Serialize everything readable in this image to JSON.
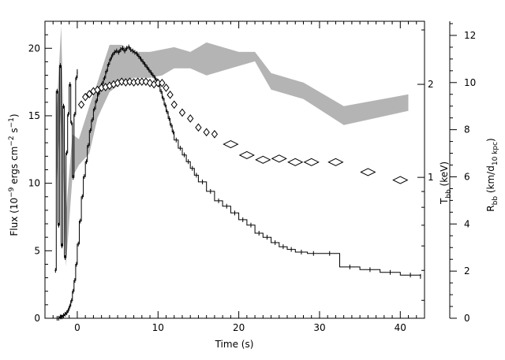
{
  "chart_data": {
    "type": "line",
    "xlabel": "Time (s)",
    "xlim": [
      -4,
      43
    ],
    "x_ticks": [
      0,
      10,
      20,
      30,
      40
    ],
    "left_axis": {
      "label": "Flux (10⁻⁹ ergs cm⁻² s⁻¹)",
      "label_parts": {
        "main": "Flux (10",
        "exp1": "−9",
        "mid1": " ergs cm",
        "exp2": "−2",
        "mid2": " s",
        "exp3": "−1",
        "end": ")"
      },
      "range": [
        0,
        22
      ],
      "ticks": [
        0,
        5,
        10,
        15,
        20
      ]
    },
    "tbb_axis": {
      "label": "T_bb (keV)",
      "label_parts": {
        "main": "T",
        "sub": "bb",
        "end": " (keV)"
      },
      "scale": "log",
      "range": [
        0.35,
        3.2
      ],
      "ticks": [
        1,
        2
      ]
    },
    "rbb_axis": {
      "label": "R_bb (km/d_10 kpc)",
      "label_parts": {
        "main": "R",
        "sub": "bb",
        "mid": " (km/d",
        "sub2": "10 kpc",
        "end": ")"
      },
      "range": [
        0,
        12.6
      ],
      "ticks": [
        0,
        2,
        4,
        6,
        8,
        10,
        12
      ]
    },
    "series": [
      {
        "style": "step",
        "values_axis": "left",
        "color": "#000000",
        "x": [
          -2.6,
          -2.4,
          -2.2,
          -2.0,
          -1.8,
          -1.6,
          -1.4,
          -1.2,
          -1.0,
          -0.8,
          -0.6,
          -0.4,
          -0.2,
          0.0,
          0.25,
          0.5,
          0.75,
          1.0,
          1.25,
          1.5,
          1.75,
          2.0,
          2.25,
          2.5,
          2.75,
          3.0,
          3.25,
          3.5,
          3.75,
          4.0,
          4.25,
          4.5,
          4.75,
          5.0,
          5.25,
          5.5,
          5.75,
          6.0,
          6.25,
          6.5,
          6.75,
          7.0,
          7.25,
          7.5,
          7.75,
          8.0,
          8.25,
          8.5,
          8.75,
          9.0,
          9.25,
          9.5,
          9.75,
          10.0,
          10.25,
          10.5,
          10.75,
          11.0,
          11.25,
          11.5,
          11.75,
          12.0,
          12.5,
          13.0,
          13.5,
          14.0,
          14.5,
          15.0,
          16.0,
          17.0,
          18.0,
          19.0,
          20.0,
          21.0,
          22.0,
          23.0,
          24.0,
          25.0,
          26.0,
          27.0,
          28.5,
          30.0,
          32.5,
          35.0,
          37.5,
          40.0,
          42.5
        ],
        "values": [
          0.0,
          0.0,
          0.1,
          0.1,
          0.2,
          0.3,
          0.4,
          0.6,
          0.9,
          1.3,
          2.0,
          2.8,
          4.0,
          5.5,
          7.2,
          9.0,
          10.5,
          11.6,
          12.8,
          13.9,
          14.7,
          15.5,
          16.1,
          16.6,
          17.0,
          17.4,
          17.8,
          18.3,
          18.8,
          19.2,
          19.5,
          19.7,
          19.8,
          19.7,
          19.9,
          20.0,
          19.8,
          20.0,
          20.1,
          19.9,
          19.8,
          19.7,
          19.6,
          19.4,
          19.2,
          19.0,
          18.8,
          18.6,
          18.4,
          18.2,
          18.0,
          17.8,
          17.6,
          17.3,
          16.8,
          16.3,
          15.8,
          15.3,
          14.8,
          14.3,
          13.8,
          13.2,
          12.6,
          12.1,
          11.6,
          11.1,
          10.6,
          10.1,
          9.4,
          8.7,
          8.3,
          7.8,
          7.3,
          6.9,
          6.3,
          6.0,
          5.6,
          5.3,
          5.1,
          4.9,
          4.8,
          4.8,
          3.8,
          3.6,
          3.4,
          3.2,
          3.1
        ]
      },
      {
        "style": "step",
        "values_axis": "tbb",
        "color": "#000000",
        "x": [
          -2.8,
          -2.6,
          -2.4,
          -2.2,
          -2.0,
          -1.8,
          -1.6,
          -1.4,
          -1.2,
          -1.0,
          -0.8,
          -0.6,
          -0.4,
          -0.2,
          0.0
        ],
        "values": [
          0.5,
          1.9,
          0.7,
          2.3,
          0.6,
          1.7,
          0.55,
          1.2,
          1.6,
          2.0,
          1.5,
          1.0,
          1.6,
          2.1,
          2.2
        ]
      },
      {
        "style": "diamond",
        "values_axis": "tbb",
        "color": "#000000",
        "x": [
          0.5,
          1.0,
          1.5,
          2.0,
          2.5,
          3.0,
          3.5,
          4.0,
          4.5,
          5.0,
          5.5,
          6.0,
          6.5,
          7.0,
          7.5,
          8.0,
          8.5,
          9.0,
          9.5,
          10.0,
          10.5,
          11.0,
          11.5,
          12.0,
          13.0,
          14.0,
          15.0,
          16.0,
          17.0,
          19.0,
          21.0,
          23.0,
          25.0,
          27.0,
          29.0,
          32.0,
          36.0,
          40.0
        ],
        "values": [
          1.72,
          1.82,
          1.86,
          1.9,
          1.92,
          1.95,
          1.96,
          1.98,
          2.0,
          2.02,
          2.04,
          2.03,
          2.04,
          2.03,
          2.04,
          2.04,
          2.04,
          2.02,
          2.0,
          2.02,
          2.02,
          1.95,
          1.85,
          1.72,
          1.62,
          1.55,
          1.45,
          1.4,
          1.38,
          1.28,
          1.18,
          1.14,
          1.15,
          1.12,
          1.12,
          1.12,
          1.04,
          0.98
        ]
      },
      {
        "style": "band",
        "values_axis": "rbb",
        "color": "#b4b4b4",
        "x": [
          -2.6,
          -2.0,
          -1.4,
          -0.6,
          0.2,
          1.5,
          2.5,
          4.0,
          5.5,
          7.0,
          9.0,
          10.5,
          12.0,
          14.0,
          16.0,
          20.0,
          22.0,
          24.0,
          28.0,
          33.0,
          41.0
        ],
        "lower": [
          5.5,
          9.0,
          2.2,
          6.0,
          6.5,
          7.0,
          8.5,
          9.6,
          10.0,
          10.2,
          10.2,
          10.3,
          10.6,
          10.6,
          10.3,
          10.7,
          10.9,
          9.7,
          9.3,
          8.2,
          8.8
        ],
        "upper": [
          8.5,
          12.4,
          4.5,
          7.8,
          7.6,
          9.0,
          10.0,
          11.6,
          11.6,
          11.3,
          11.3,
          11.4,
          11.5,
          11.3,
          11.7,
          11.3,
          11.3,
          10.4,
          10.0,
          9.0,
          9.5
        ]
      }
    ]
  }
}
